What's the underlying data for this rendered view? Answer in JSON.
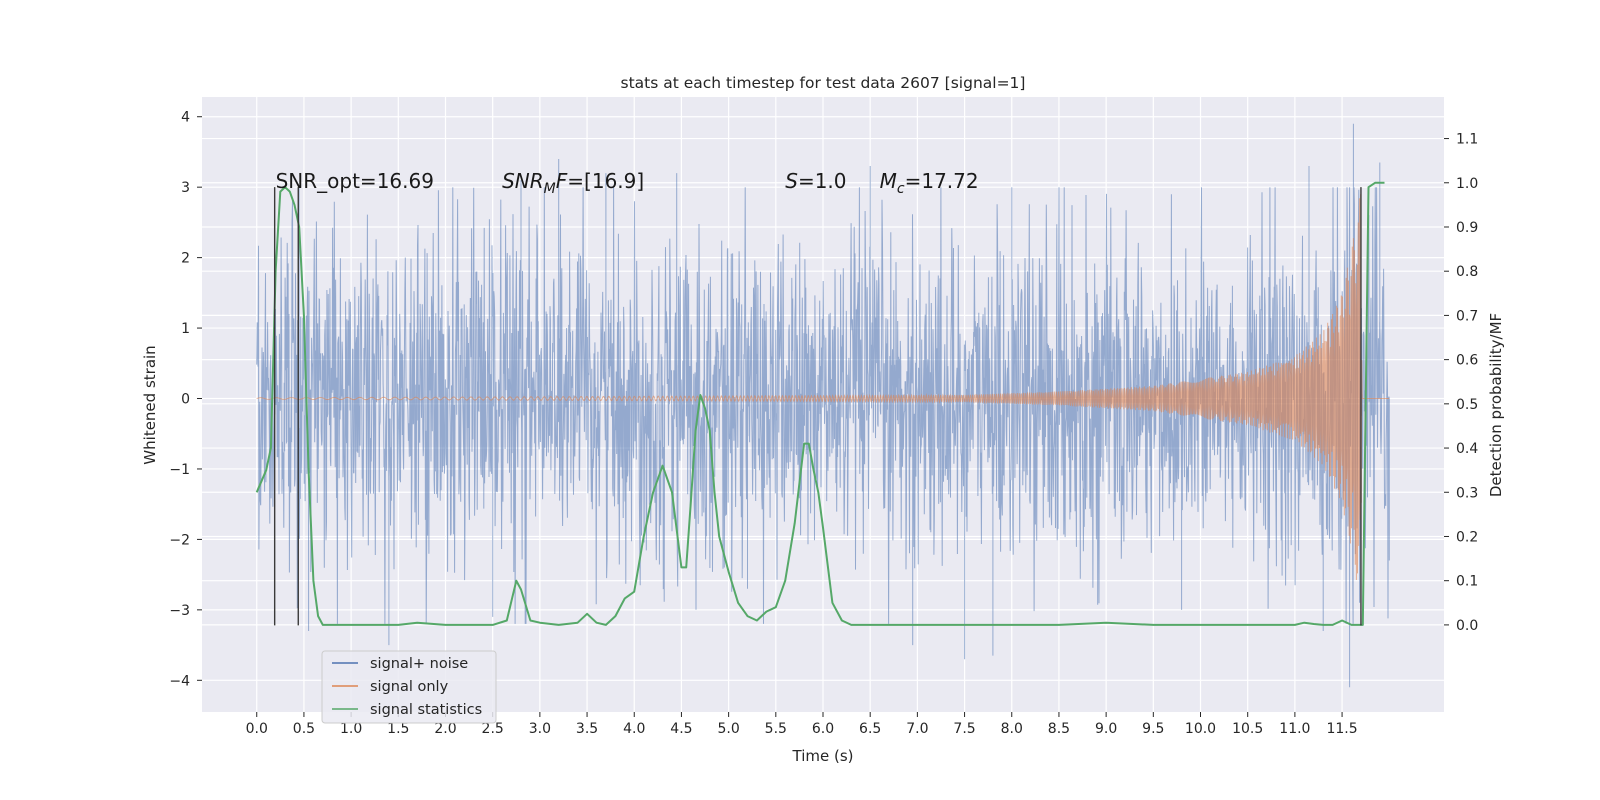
{
  "chart_data": {
    "type": "line",
    "title": "stats at each timestep for test data 2607 [signal=1]",
    "xlabel": "Time (s)",
    "ylabel": "Whitened strain",
    "ylabel_right": "Detection probability/MF",
    "xlim": [
      -0.58,
      12.58
    ],
    "ylim": [
      -4.45,
      4.28
    ],
    "ylim_right": [
      -0.197,
      1.194
    ],
    "x_ticks": [
      0.0,
      0.5,
      1.0,
      1.5,
      2.0,
      2.5,
      3.0,
      3.5,
      4.0,
      4.5,
      5.0,
      5.5,
      6.0,
      6.5,
      7.0,
      7.5,
      8.0,
      8.5,
      9.0,
      9.5,
      10.0,
      10.5,
      11.0,
      11.5
    ],
    "x_tick_labels": [
      "0.0",
      "0.5",
      "1.0",
      "1.5",
      "2.0",
      "2.5",
      "3.0",
      "3.5",
      "4.0",
      "4.5",
      "5.0",
      "5.5",
      "6.0",
      "6.5",
      "7.0",
      "7.5",
      "8.0",
      "8.5",
      "9.0",
      "9.5",
      "10.0",
      "10.5",
      "11.0",
      "11.5"
    ],
    "y_ticks": [
      -4,
      -3,
      -2,
      -1,
      0,
      1,
      2,
      3,
      4
    ],
    "y_tick_labels": [
      "−4",
      "−3",
      "−2",
      "−1",
      "0",
      "1",
      "2",
      "3",
      "4"
    ],
    "y_right_ticks": [
      0.0,
      0.1,
      0.2,
      0.3,
      0.4,
      0.5,
      0.6,
      0.7,
      0.8,
      0.9,
      1.0,
      1.1
    ],
    "y_right_tick_labels": [
      "0.0",
      "0.1",
      "0.2",
      "0.3",
      "0.4",
      "0.5",
      "0.6",
      "0.7",
      "0.8",
      "0.9",
      "1.0",
      "1.1"
    ],
    "grid": true,
    "legend_position": "lower-left",
    "annotations": [
      {
        "parts": [
          "SNR_opt=16.69"
        ],
        "x": 0.2,
        "y": 3.0
      },
      {
        "parts": [
          "SNR",
          "M",
          "F=[16.9]"
        ],
        "x": 2.6,
        "y": 3.0
      },
      {
        "parts": [
          "S",
          "=1.0"
        ],
        "x": 5.6,
        "y": 3.0
      },
      {
        "parts": [
          "M",
          "c",
          "=17.72"
        ],
        "x": 6.6,
        "y": 3.0
      }
    ],
    "vlines": [
      {
        "x": 0.19,
        "y_range": [
          -3.22,
          3.0
        ]
      },
      {
        "x": 0.44,
        "y_range": [
          -3.22,
          3.0
        ]
      },
      {
        "x": 11.7,
        "y_range": [
          -3.22,
          3.0
        ]
      }
    ],
    "series": [
      {
        "name": "signal+ noise",
        "color": "#4c72b0",
        "style": "noise",
        "x_range": [
          0.0,
          12.0
        ],
        "typical_amplitude": 1.8,
        "peak_points": [
          [
            0.02,
            1.6
          ],
          [
            0.55,
            -3.3
          ],
          [
            1.4,
            -3.5
          ],
          [
            2.5,
            -3.1
          ],
          [
            2.8,
            3.1
          ],
          [
            3.2,
            3.4
          ],
          [
            3.7,
            3.2
          ],
          [
            4.45,
            3.2
          ],
          [
            5.2,
            -2.7
          ],
          [
            6.5,
            3.3
          ],
          [
            6.95,
            -3.5
          ],
          [
            7.5,
            -3.7
          ],
          [
            7.8,
            -3.65
          ],
          [
            8.0,
            3.0
          ],
          [
            9.8,
            -3.0
          ],
          [
            11.15,
            3.3
          ],
          [
            11.3,
            -3.3
          ],
          [
            11.58,
            -4.1
          ],
          [
            11.62,
            3.9
          ],
          [
            11.9,
            3.35
          ],
          [
            12.0,
            -2.3
          ]
        ]
      },
      {
        "name": "signal only",
        "color": "#dd8452",
        "style": "chirp",
        "x_range": [
          0.0,
          12.0
        ],
        "envelope": [
          [
            0.0,
            0.01
          ],
          [
            7.5,
            0.05
          ],
          [
            8.5,
            0.1
          ],
          [
            9.5,
            0.18
          ],
          [
            10.5,
            0.38
          ],
          [
            11.0,
            0.6
          ],
          [
            11.3,
            0.95
          ],
          [
            11.5,
            1.5
          ],
          [
            11.62,
            2.3
          ],
          [
            11.7,
            3.0
          ],
          [
            11.71,
            0.0
          ],
          [
            12.0,
            0.0
          ]
        ]
      },
      {
        "name": "signal statistics",
        "color": "#55a868",
        "axis": "right",
        "x": [
          0.0,
          0.1,
          0.15,
          0.2,
          0.25,
          0.3,
          0.35,
          0.4,
          0.45,
          0.5,
          0.55,
          0.6,
          0.65,
          0.7,
          0.8,
          1.0,
          1.5,
          1.7,
          2.0,
          2.5,
          2.65,
          2.75,
          2.8,
          2.9,
          3.0,
          3.2,
          3.4,
          3.5,
          3.6,
          3.7,
          3.8,
          3.9,
          4.0,
          4.1,
          4.2,
          4.3,
          4.35,
          4.4,
          4.5,
          4.55,
          4.6,
          4.65,
          4.7,
          4.75,
          4.8,
          4.85,
          4.9,
          5.0,
          5.1,
          5.2,
          5.3,
          5.4,
          5.5,
          5.6,
          5.7,
          5.8,
          5.85,
          5.9,
          5.95,
          6.0,
          6.1,
          6.2,
          6.3,
          6.4,
          6.5,
          7.0,
          8.0,
          8.5,
          9.0,
          9.5,
          10.0,
          10.5,
          11.0,
          11.1,
          11.2,
          11.3,
          11.4,
          11.5,
          11.6,
          11.68,
          11.72,
          11.78,
          11.85,
          11.95
        ],
        "y": [
          0.3,
          0.35,
          0.4,
          0.8,
          0.98,
          0.99,
          0.98,
          0.95,
          0.9,
          0.7,
          0.35,
          0.1,
          0.02,
          0.0,
          0.0,
          0.0,
          0.0,
          0.005,
          0.0,
          0.0,
          0.01,
          0.1,
          0.08,
          0.01,
          0.005,
          0.0,
          0.005,
          0.025,
          0.005,
          0.0,
          0.02,
          0.06,
          0.075,
          0.2,
          0.3,
          0.36,
          0.33,
          0.3,
          0.13,
          0.13,
          0.28,
          0.44,
          0.52,
          0.49,
          0.44,
          0.3,
          0.2,
          0.12,
          0.05,
          0.02,
          0.01,
          0.03,
          0.04,
          0.1,
          0.23,
          0.41,
          0.41,
          0.35,
          0.3,
          0.22,
          0.05,
          0.01,
          0.0,
          0.0,
          0.0,
          0.0,
          0.0,
          0.0,
          0.005,
          0.0,
          0.0,
          0.0,
          0.0,
          0.005,
          0.002,
          0.0,
          0.0,
          0.01,
          0.0,
          0.0,
          0.0,
          0.99,
          1.0,
          1.0
        ]
      }
    ]
  }
}
